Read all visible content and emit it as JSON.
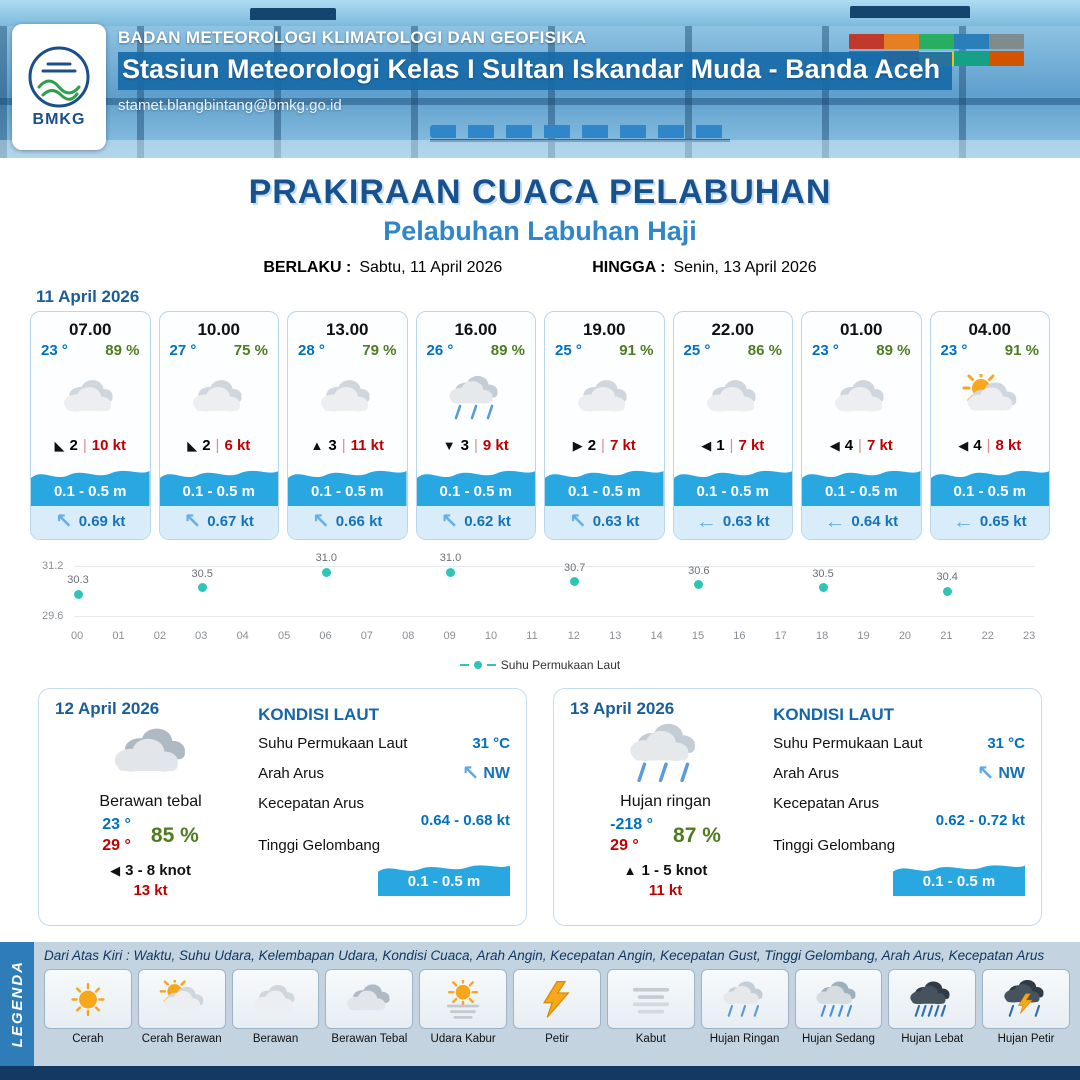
{
  "colors": {
    "accent": "#1b5e96",
    "subtitle": "#2f86c8",
    "temp": "#0070c0",
    "humidity": "#4e7c1f",
    "wind_speed": "#c00000",
    "wave": "#29a7e0",
    "current": "#1673b9",
    "chart_dot": "#2ec4b6"
  },
  "header": {
    "agency": "BADAN METEOROLOGI KLIMATOLOGI DAN GEOFISIKA",
    "station": "Stasiun Meteorologi Kelas I Sultan Iskandar Muda - Banda Aceh",
    "email": "stamet.blangbintang@bmkg.go.id",
    "logo_text": "BMKG"
  },
  "title": {
    "main": "PRAKIRAAN CUACA PELABUHAN",
    "subtitle": "Pelabuhan Labuhan Haji",
    "berlaku_label": "BERLAKU :",
    "berlaku_value": "Sabtu, 11 April 2026",
    "hingga_label": "HINGGA :",
    "hingga_value": "Senin, 13 April 2026"
  },
  "forecast": {
    "date": "11 April 2026",
    "cards": [
      {
        "time": "07.00",
        "temp": "23 °",
        "humidity": "89 %",
        "icon": "berawan",
        "wind_dir": "◣",
        "wind_value": "2",
        "wind_speed": "10 kt",
        "wave": "0.1 - 0.5 m",
        "current_dir": "↖",
        "current_speed": "0.69 kt"
      },
      {
        "time": "10.00",
        "temp": "27 °",
        "humidity": "75 %",
        "icon": "berawan",
        "wind_dir": "◣",
        "wind_value": "2",
        "wind_speed": "6 kt",
        "wave": "0.1 - 0.5 m",
        "current_dir": "↖",
        "current_speed": "0.67 kt"
      },
      {
        "time": "13.00",
        "temp": "28 °",
        "humidity": "79 %",
        "icon": "berawan",
        "wind_dir": "▲",
        "wind_value": "3",
        "wind_speed": "11 kt",
        "wave": "0.1 - 0.5 m",
        "current_dir": "↖",
        "current_speed": "0.66 kt"
      },
      {
        "time": "16.00",
        "temp": "26 °",
        "humidity": "89 %",
        "icon": "hujan-ringan",
        "wind_dir": "▼",
        "wind_value": "3",
        "wind_speed": "9 kt",
        "wave": "0.1 - 0.5 m",
        "current_dir": "↖",
        "current_speed": "0.62 kt"
      },
      {
        "time": "19.00",
        "temp": "25 °",
        "humidity": "91 %",
        "icon": "berawan",
        "wind_dir": "▶",
        "wind_value": "2",
        "wind_speed": "7 kt",
        "wave": "0.1 - 0.5 m",
        "current_dir": "↖",
        "current_speed": "0.63 kt"
      },
      {
        "time": "22.00",
        "temp": "25 °",
        "humidity": "86 %",
        "icon": "berawan",
        "wind_dir": "◀",
        "wind_value": "1",
        "wind_speed": "7 kt",
        "wave": "0.1 - 0.5 m",
        "current_dir": "←",
        "current_speed": "0.63 kt"
      },
      {
        "time": "01.00",
        "temp": "23 °",
        "humidity": "89 %",
        "icon": "berawan",
        "wind_dir": "◀",
        "wind_value": "4",
        "wind_speed": "7 kt",
        "wave": "0.1 - 0.5 m",
        "current_dir": "←",
        "current_speed": "0.64 kt"
      },
      {
        "time": "04.00",
        "temp": "23 °",
        "humidity": "91 %",
        "icon": "cerah-berawan",
        "wind_dir": "◀",
        "wind_value": "4",
        "wind_speed": "8 kt",
        "wave": "0.1 - 0.5 m",
        "current_dir": "←",
        "current_speed": "0.65 kt"
      }
    ]
  },
  "chart_data": {
    "type": "scatter",
    "legend": "Suhu Permukaan Laut",
    "ylim": [
      29.6,
      31.2
    ],
    "y_tick_labels": [
      "31.2",
      "29.6"
    ],
    "x_ticks": [
      "00",
      "01",
      "02",
      "03",
      "04",
      "05",
      "06",
      "07",
      "08",
      "09",
      "10",
      "11",
      "12",
      "13",
      "14",
      "15",
      "16",
      "17",
      "18",
      "19",
      "20",
      "21",
      "22",
      "23"
    ],
    "series": [
      {
        "name": "Suhu Permukaan Laut",
        "points": [
          {
            "x": 0,
            "y": 30.3,
            "label": "30.3"
          },
          {
            "x": 3,
            "y": 30.5,
            "label": "30.5"
          },
          {
            "x": 6,
            "y": 31.0,
            "label": "31.0"
          },
          {
            "x": 9,
            "y": 31.0,
            "label": "31.0"
          },
          {
            "x": 12,
            "y": 30.7,
            "label": "30.7"
          },
          {
            "x": 15,
            "y": 30.6,
            "label": "30.6"
          },
          {
            "x": 18,
            "y": 30.5,
            "label": "30.5"
          },
          {
            "x": 21,
            "y": 30.4,
            "label": "30.4"
          }
        ]
      }
    ]
  },
  "sea_labels": {
    "title": "KONDISI LAUT",
    "sst": "Suhu Permukaan Laut",
    "arah": "Arah Arus",
    "kecepatan": "Kecepatan Arus",
    "gelombang": "Tinggi Gelombang"
  },
  "day_cards": [
    {
      "date": "12 April 2026",
      "icon": "berawan-tebal",
      "condition": "Berawan tebal",
      "temp_min": "23 °",
      "temp_max": "29 °",
      "humidity": "85 %",
      "wind_dir": "◀",
      "wind_range": "3 - 8 knot",
      "gust": "13 kt",
      "sea": {
        "sst": "31 °C",
        "current_dir": "↖",
        "current_dir_label": "NW",
        "current_speed": "0.64  - 0.68 kt",
        "wave": "0.1 - 0.5 m"
      }
    },
    {
      "date": "13 April 2026",
      "icon": "hujan-ringan",
      "condition": "Hujan ringan",
      "temp_min": "-218 °",
      "temp_max": "29 °",
      "humidity": "87 %",
      "wind_dir": "▲",
      "wind_range": "1  - 5 knot",
      "gust": "11 kt",
      "sea": {
        "sst": "31 °C",
        "current_dir": "↖",
        "current_dir_label": "NW",
        "current_speed": "0.62  - 0.72 kt",
        "wave": "0.1 - 0.5 m"
      }
    }
  ],
  "legend": {
    "ribbon": "LEGENDA",
    "note": "Dari Atas Kiri : Waktu, Suhu Udara, Kelembapan Udara, Kondisi Cuaca, Arah Angin, Kecepatan Angin, Kecepatan Gust, Tinggi Gelombang, Arah Arus, Kecepatan Arus",
    "items": [
      {
        "label": "Cerah",
        "icon": "cerah"
      },
      {
        "label": "Cerah Berawan",
        "icon": "cerah-berawan"
      },
      {
        "label": "Berawan",
        "icon": "berawan"
      },
      {
        "label": "Berawan Tebal",
        "icon": "berawan-tebal"
      },
      {
        "label": "Udara Kabur",
        "icon": "udara-kabur"
      },
      {
        "label": "Petir",
        "icon": "petir"
      },
      {
        "label": "Kabut",
        "icon": "kabut"
      },
      {
        "label": "Hujan Ringan",
        "icon": "hujan-ringan"
      },
      {
        "label": "Hujan Sedang",
        "icon": "hujan-sedang"
      },
      {
        "label": "Hujan Lebat",
        "icon": "hujan-lebat"
      },
      {
        "label": "Hujan Petir",
        "icon": "hujan-petir"
      }
    ]
  }
}
